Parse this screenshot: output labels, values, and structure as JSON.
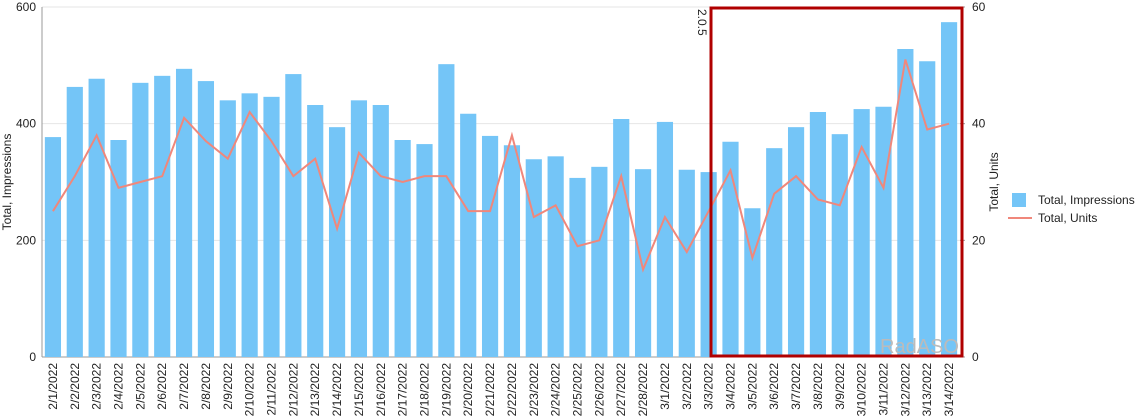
{
  "chart_data": {
    "type": "bar-line",
    "categories": [
      "2/1/2022",
      "2/2/2022",
      "2/3/2022",
      "2/4/2022",
      "2/5/2022",
      "2/6/2022",
      "2/7/2022",
      "2/8/2022",
      "2/9/2022",
      "2/10/2022",
      "2/11/2022",
      "2/12/2022",
      "2/13/2022",
      "2/14/2022",
      "2/15/2022",
      "2/16/2022",
      "2/17/2022",
      "2/18/2022",
      "2/19/2022",
      "2/20/2022",
      "2/21/2022",
      "2/22/2022",
      "2/23/2022",
      "2/24/2022",
      "2/25/2022",
      "2/26/2022",
      "2/27/2022",
      "2/28/2022",
      "3/1/2022",
      "3/2/2022",
      "3/3/2022",
      "3/4/2022",
      "3/5/2022",
      "3/6/2022",
      "3/7/2022",
      "3/8/2022",
      "3/9/2022",
      "3/10/2022",
      "3/11/2022",
      "3/12/2022",
      "3/13/2022",
      "3/14/2022"
    ],
    "series": [
      {
        "name": "Total, Impressions",
        "color": "#74c5f7",
        "kind": "bar",
        "values": [
          377,
          463,
          477,
          372,
          470,
          482,
          494,
          473,
          440,
          452,
          446,
          485,
          432,
          394,
          440,
          432,
          372,
          365,
          502,
          417,
          379,
          363,
          339,
          344,
          307,
          326,
          408,
          322,
          403,
          321,
          317,
          369,
          255,
          358,
          394,
          420,
          382,
          425,
          429,
          528,
          507,
          574
        ]
      },
      {
        "name": "Total, Units",
        "color": "#f0877b",
        "kind": "line",
        "axis": "y2",
        "values": [
          25,
          31,
          38,
          29,
          30,
          31,
          41,
          37,
          34,
          42,
          37,
          31,
          34,
          22,
          35,
          31,
          30,
          31,
          31,
          25,
          25,
          38,
          24,
          26,
          19,
          20,
          31,
          15,
          24,
          18,
          25,
          32,
          17,
          28,
          31,
          27,
          26,
          36,
          29,
          51,
          39,
          40
        ]
      }
    ],
    "ylabel": "Total, Impressions",
    "y2label": "Total, Units",
    "ylim": [
      0,
      600
    ],
    "yticks": [
      0,
      200,
      400,
      600
    ],
    "y2lim": [
      0,
      60
    ],
    "y2ticks": [
      0,
      20,
      40,
      60
    ],
    "grid": true,
    "legend": "right",
    "annotation": "2.0.5",
    "watermark": "RadASO"
  }
}
